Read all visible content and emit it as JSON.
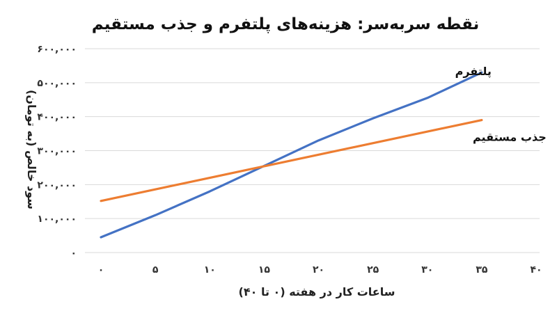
{
  "chart_data": {
    "type": "line",
    "title": "نقطه سربه‌سر: هزینه‌های پلتفرم و جذب مستقیم",
    "xlabel": "ساعات کار در هفته (۰ تا ۴۰)",
    "ylabel": "سود خالص (به تومان)",
    "xlim": [
      0,
      40
    ],
    "ylim": [
      0,
      600000
    ],
    "x_ticks": [
      0,
      5,
      10,
      15,
      20,
      25,
      30,
      35,
      40
    ],
    "x_tick_labels": [
      "۰",
      "۵",
      "۱۰",
      "۱۵",
      "۲۰",
      "۲۵",
      "۳۰",
      "۳۵",
      "۴۰"
    ],
    "y_ticks": [
      0,
      100000,
      200000,
      300000,
      400000,
      500000,
      600000
    ],
    "y_tick_labels": [
      "۰",
      "۱۰۰,۰۰۰",
      "۲۰۰,۰۰۰",
      "۳۰۰,۰۰۰",
      "۴۰۰,۰۰۰",
      "۵۰۰,۰۰۰",
      "۶۰۰,۰۰۰"
    ],
    "grid": "horizontal",
    "series": [
      {
        "name": "پلتفرم",
        "color": "#4472C4",
        "x": [
          0,
          5,
          10,
          15,
          20,
          25,
          30,
          35
        ],
        "y": [
          45000,
          110000,
          180000,
          255000,
          330000,
          395000,
          455000,
          530000
        ]
      },
      {
        "name": "جذب مستقیم",
        "color": "#ED7D31",
        "x": [
          0,
          35
        ],
        "y": [
          152000,
          390000
        ]
      }
    ]
  }
}
